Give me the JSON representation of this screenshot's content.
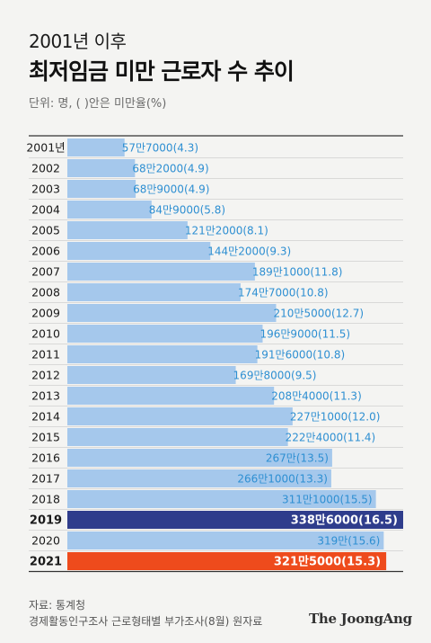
{
  "title_line1": "2001년 이후",
  "title_line2": "최저임금 미만 근로자 수 추이",
  "unit_note": "단위: 명, ( )안은 미만율(%)",
  "source_line1": "자료: 통계청",
  "source_line2": "경제활동인구조사 근로형태별 부가조사(8월) 원자료",
  "logo_text": "The JoongAng",
  "colors": {
    "bar_default": "#a5c8ec",
    "label_default": "#2e8fd2",
    "bar_2019": "#2f3d8c",
    "bar_2021": "#ee4b1c",
    "highlight_label": "#ffffff"
  },
  "chart_data": {
    "type": "bar",
    "orientation": "horizontal",
    "categories": [
      "2001년",
      "2002",
      "2003",
      "2004",
      "2005",
      "2006",
      "2007",
      "2008",
      "2009",
      "2010",
      "2011",
      "2012",
      "2013",
      "2014",
      "2015",
      "2016",
      "2017",
      "2018",
      "2019",
      "2020",
      "2021"
    ],
    "values": [
      577000,
      682000,
      689000,
      849000,
      1212000,
      1442000,
      1891000,
      1747000,
      2105000,
      1969000,
      1916000,
      1698000,
      2084000,
      2271000,
      2224000,
      2670000,
      2661000,
      3111000,
      3386000,
      3190000,
      3215000
    ],
    "rates": [
      4.3,
      4.9,
      4.9,
      5.8,
      8.1,
      9.3,
      11.8,
      10.8,
      12.7,
      11.5,
      10.8,
      9.5,
      11.3,
      12.0,
      11.4,
      13.5,
      13.3,
      15.5,
      16.5,
      15.6,
      15.3
    ],
    "labels": [
      "57만7000(4.3)",
      "68만2000(4.9)",
      "68만9000(4.9)",
      "84만9000(5.8)",
      "121만2000(8.1)",
      "144만2000(9.3)",
      "189만1000(11.8)",
      "174만7000(10.8)",
      "210만5000(12.7)",
      "196만9000(11.5)",
      "191만6000(10.8)",
      "169만8000(9.5)",
      "208만4000(11.3)",
      "227만1000(12.0)",
      "222만4000(11.4)",
      "267만(13.5)",
      "266만1000(13.3)",
      "311만1000(15.5)",
      "338만6000(16.5)",
      "319만(15.6)",
      "321만5000(15.3)"
    ],
    "highlighted": [
      "2019",
      "2021"
    ],
    "xlim": [
      0,
      3386000
    ],
    "grid": false,
    "legend": "none"
  }
}
